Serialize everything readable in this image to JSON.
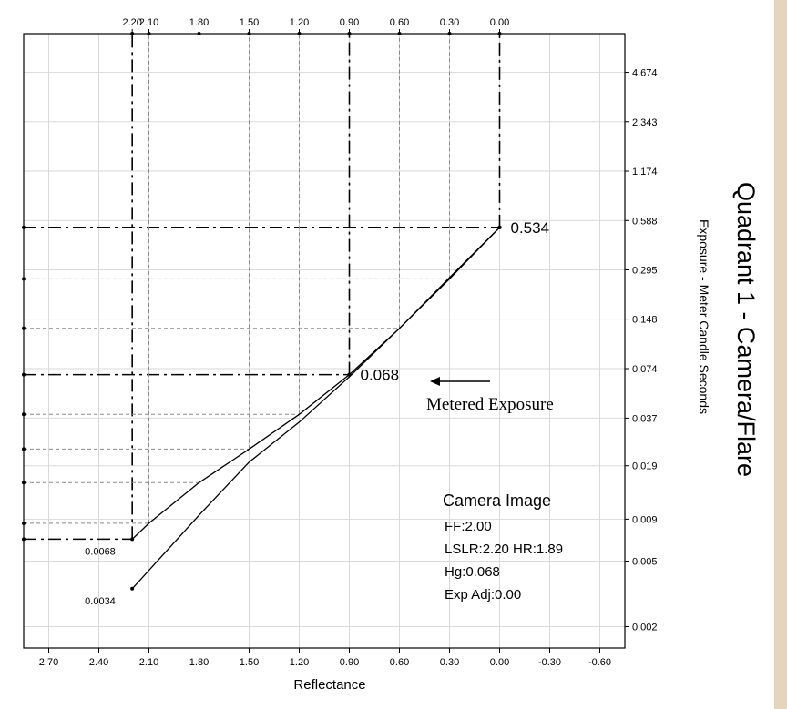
{
  "chart_data": {
    "type": "line",
    "title": "Quadrant 1 - Camera/Flare",
    "xlabel": "Reflectance",
    "ylabel": "Exposure - Meter Candle Seconds",
    "x_axis": {
      "direction": "reversed",
      "xlim": [
        2.85,
        -0.75
      ],
      "bottom_ticks": [
        "2.70",
        "2.40",
        "2.10",
        "1.80",
        "1.50",
        "1.20",
        "0.90",
        "0.60",
        "0.30",
        "0.00",
        "-0.30",
        "-0.60"
      ],
      "bottom_tick_values": [
        2.7,
        2.4,
        2.1,
        1.8,
        1.5,
        1.2,
        0.9,
        0.6,
        0.3,
        0.0,
        -0.3,
        -0.6
      ],
      "top_ticks": [
        "2.20",
        "2.10",
        "1.80",
        "1.50",
        "1.20",
        "0.90",
        "0.60",
        "0.30",
        "0.00"
      ],
      "top_tick_values": [
        2.2,
        2.1,
        1.8,
        1.5,
        1.2,
        0.9,
        0.6,
        0.3,
        0.0
      ]
    },
    "y_axis": {
      "scale": "log",
      "position": "right",
      "ticks": [
        "4.674",
        "2.343",
        "1.174",
        "0.588",
        "0.295",
        "0.148",
        "0.074",
        "0.037",
        "0.019",
        "0.009",
        "0.005",
        "0.002"
      ],
      "tick_values": [
        4.674,
        2.343,
        1.174,
        0.588,
        0.295,
        0.148,
        0.074,
        0.037,
        0.019,
        0.009,
        0.005,
        0.002
      ]
    },
    "grid": true,
    "series": [
      {
        "style": "solid",
        "x": [
          2.2,
          2.1,
          1.8,
          1.5,
          1.2,
          0.9,
          0.6,
          0.3,
          0.0
        ],
        "y": [
          0.0068,
          0.0085,
          0.015,
          0.024,
          0.039,
          0.068,
          0.13,
          0.26,
          0.534
        ]
      },
      {
        "style": "solid",
        "x": [
          2.2,
          1.8,
          1.5,
          1.2,
          0.9,
          0.6,
          0.3,
          0.0
        ],
        "y": [
          0.0034,
          0.0095,
          0.02,
          0.035,
          0.066,
          0.13,
          0.265,
          0.534
        ]
      }
    ],
    "reference_lines": [
      {
        "style": "heavy-dash",
        "orientation": "horizontal",
        "y": 0.534,
        "x_from": 2.85,
        "x_to": 0.0
      },
      {
        "style": "heavy-dash",
        "orientation": "horizontal",
        "y": 0.068,
        "x_from": 2.85,
        "x_to": 0.9
      },
      {
        "style": "heavy-dash",
        "orientation": "horizontal",
        "y": 0.0068,
        "x_from": 2.85,
        "x_to": 2.2
      },
      {
        "style": "heavy-dash",
        "orientation": "vertical",
        "x": 2.2,
        "y_from": 0.0068,
        "y_to": "top"
      },
      {
        "style": "heavy-dash",
        "orientation": "vertical",
        "x": 0.9,
        "y_from": 0.068,
        "y_to": "top"
      },
      {
        "style": "heavy-dash",
        "orientation": "vertical",
        "x": 0.0,
        "y_from": 0.534,
        "y_to": "top"
      },
      {
        "style": "light-dash",
        "orientation": "horizontal",
        "y": 0.26,
        "x_from": 2.85,
        "x_to": 0.3
      },
      {
        "style": "light-dash",
        "orientation": "horizontal",
        "y": 0.13,
        "x_from": 2.85,
        "x_to": 0.6
      },
      {
        "style": "light-dash",
        "orientation": "horizontal",
        "y": 0.039,
        "x_from": 2.85,
        "x_to": 1.2
      },
      {
        "style": "light-dash",
        "orientation": "horizontal",
        "y": 0.024,
        "x_from": 2.85,
        "x_to": 1.5
      },
      {
        "style": "light-dash",
        "orientation": "horizontal",
        "y": 0.015,
        "x_from": 2.85,
        "x_to": 1.8
      },
      {
        "style": "light-dash",
        "orientation": "horizontal",
        "y": 0.0085,
        "x_from": 2.85,
        "x_to": 2.1
      },
      {
        "style": "light-dash",
        "orientation": "vertical",
        "x": 2.1,
        "y_from": 0.0085,
        "y_to": "top"
      },
      {
        "style": "light-dash",
        "orientation": "vertical",
        "x": 1.8,
        "y_from": 0.015,
        "y_to": "top"
      },
      {
        "style": "light-dash",
        "orientation": "vertical",
        "x": 1.5,
        "y_from": 0.024,
        "y_to": "top"
      },
      {
        "style": "light-dash",
        "orientation": "vertical",
        "x": 1.2,
        "y_from": 0.039,
        "y_to": "top"
      },
      {
        "style": "light-dash",
        "orientation": "vertical",
        "x": 0.6,
        "y_from": 0.13,
        "y_to": "top"
      },
      {
        "style": "light-dash",
        "orientation": "vertical",
        "x": 0.3,
        "y_from": 0.26,
        "y_to": "top"
      }
    ],
    "point_labels": [
      {
        "text": "0.534",
        "x": 0.0,
        "y": 0.534
      },
      {
        "text": "0.068",
        "x": 0.9,
        "y": 0.068
      },
      {
        "text": "0.0068",
        "x": 2.2,
        "y": 0.0068
      },
      {
        "text": "0.0034",
        "x": 2.2,
        "y": 0.0034
      }
    ],
    "annotation": {
      "text": "Metered Exposure",
      "arrow_to": "0.068"
    },
    "info_box": {
      "title": "Camera Image",
      "lines": [
        "FF:2.00",
        "LSLR:2.20 HR:1.89",
        "Hg:0.068",
        "Exp Adj:0.00"
      ]
    },
    "colors": {
      "axis": "#000000",
      "grid": "#d9d9d9",
      "dash_light": "#8a8a8a",
      "background": "#ffffff",
      "right_border": "#e6d4bd"
    }
  }
}
